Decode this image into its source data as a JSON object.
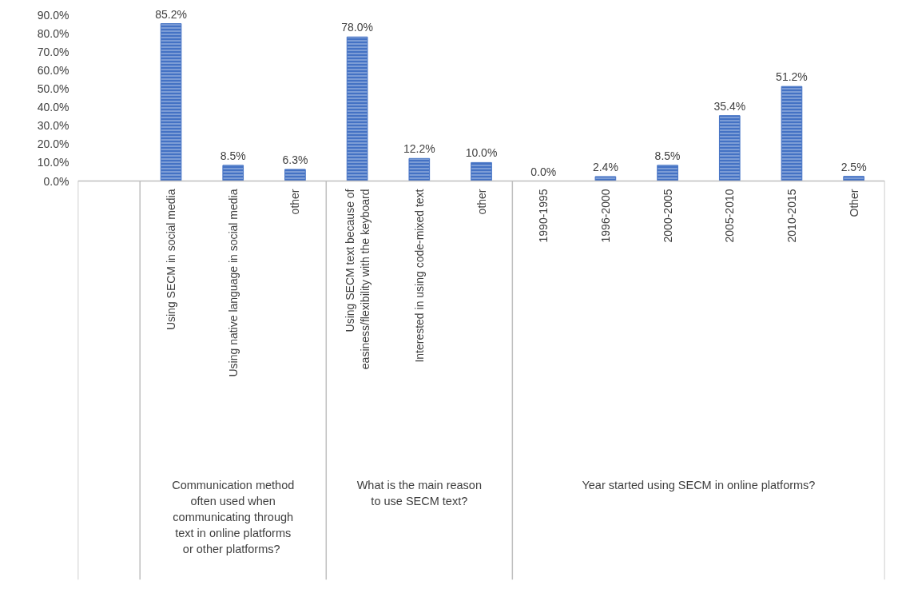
{
  "chart_data": {
    "type": "bar",
    "categories": [
      null,
      "Using SECM in social media",
      "Using native language in social media",
      "other",
      "Using SECM text because of easiness/flexibility with the keyboard",
      "Interested in using code-mixed text",
      "other",
      "1990-1995",
      "1996-2000",
      "2000-2005",
      "2005-2010",
      "2010-2015",
      "Other"
    ],
    "values": [
      null,
      85.2,
      8.5,
      6.3,
      78.0,
      12.2,
      10.0,
      0.0,
      2.4,
      8.5,
      35.4,
      51.2,
      2.5
    ],
    "value_labels": [
      null,
      "85.2%",
      "8.5%",
      "6.3%",
      "78.0%",
      "12.2%",
      "10.0%",
      "0.0%",
      "2.4%",
      "8.5%",
      "35.4%",
      "51.2%",
      "2.5%"
    ],
    "color": "#4472c4",
    "ylim": [
      0,
      90
    ],
    "yticks": [
      {
        "value": 0,
        "label": "0.0%"
      },
      {
        "value": 10,
        "label": "10.0%"
      },
      {
        "value": 20,
        "label": "20.0%"
      },
      {
        "value": 30,
        "label": "30.0%"
      },
      {
        "value": 40,
        "label": "40.0%"
      },
      {
        "value": 50,
        "label": "50.0%"
      },
      {
        "value": 60,
        "label": "60.0%"
      },
      {
        "value": 70,
        "label": "70.0%"
      },
      {
        "value": 80,
        "label": "80.0%"
      },
      {
        "value": 90,
        "label": "90.0%"
      }
    ],
    "annotations": [
      "Communication method often used when communicating through text in online platforms or other  platforms?",
      "What is the main reason to use SECM text?",
      "Year started using SECM in online platforms?"
    ],
    "grid": false
  }
}
